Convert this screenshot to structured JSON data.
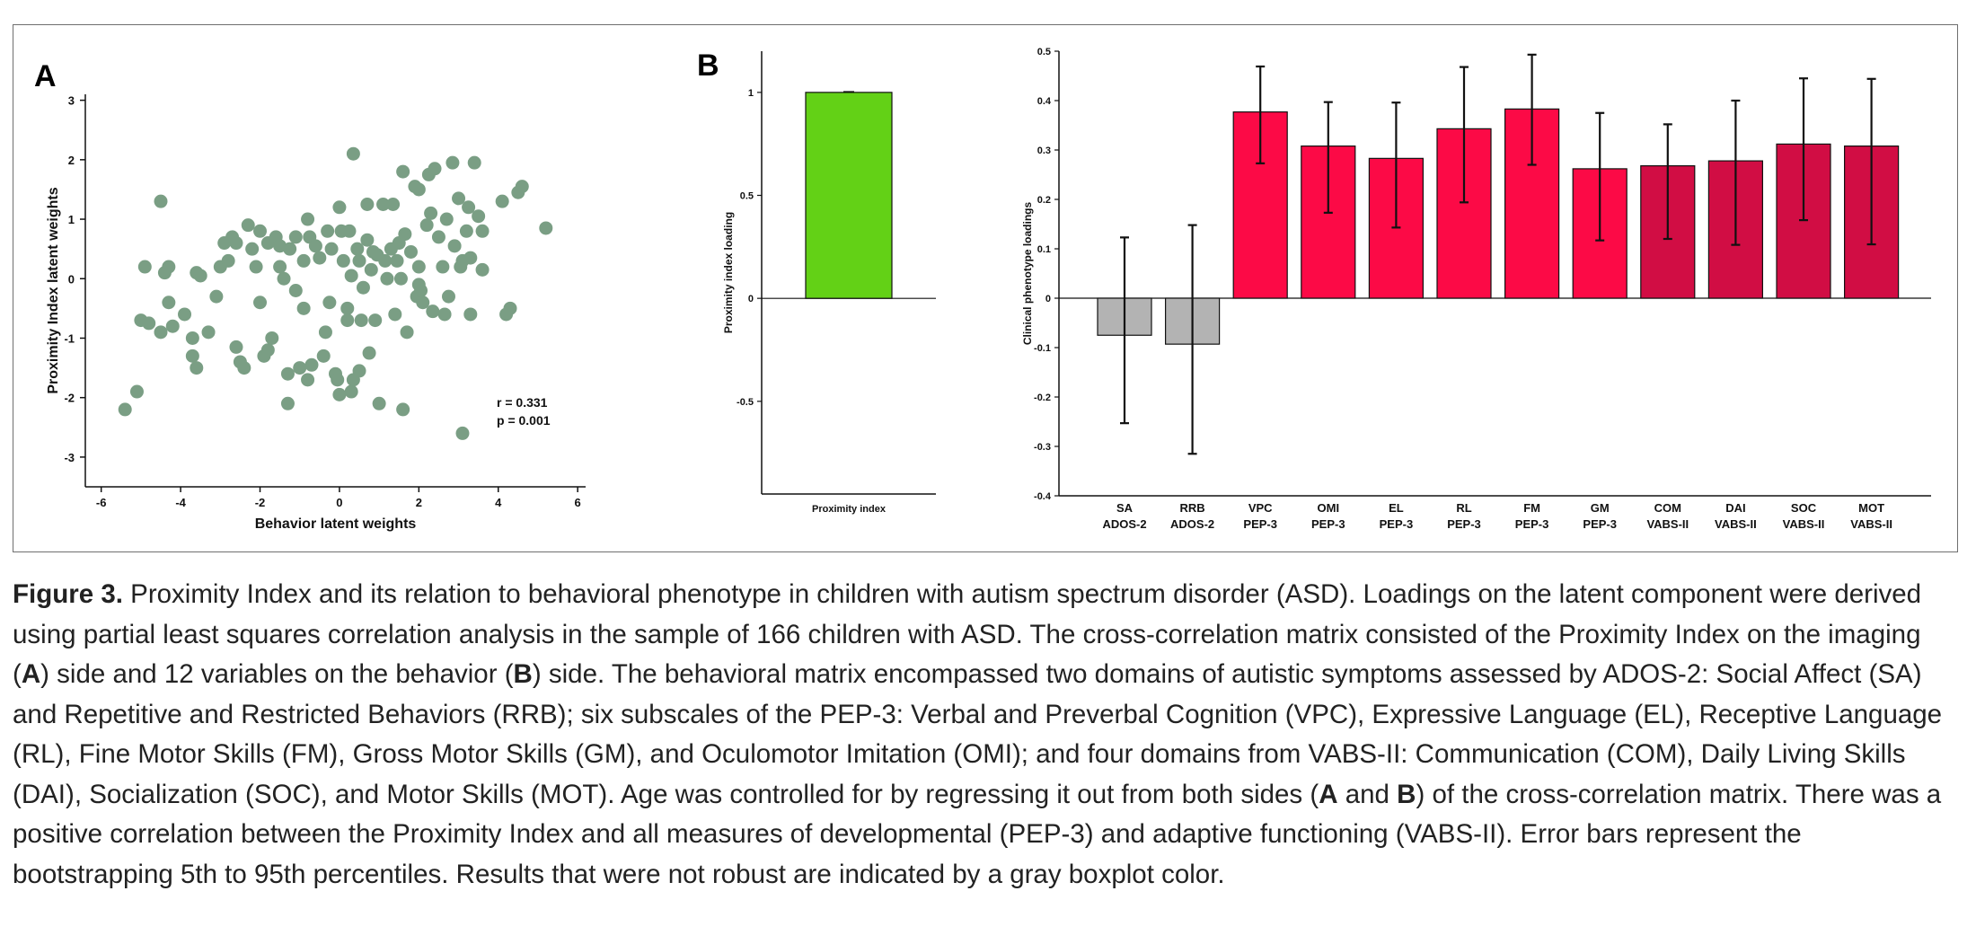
{
  "panel_a_label": "A",
  "panel_b_label": "B",
  "chart_data": [
    {
      "type": "scatter",
      "xlabel": "Behavior latent weights",
      "ylabel": "Proximity Index latent weights",
      "xlim": [
        -6.4,
        6.2
      ],
      "ylim": [
        -3.5,
        3.1
      ],
      "xticks": [
        -6,
        -4,
        -2,
        0,
        2,
        4,
        6
      ],
      "yticks": [
        -3,
        -2,
        -1,
        0,
        1,
        2,
        3
      ],
      "color": "#7a9e84",
      "annotations": [
        "r  = 0.331",
        "p = 0.001"
      ],
      "points": [
        [
          -5.4,
          -2.2
        ],
        [
          -5.1,
          -1.9
        ],
        [
          -4.9,
          0.2
        ],
        [
          -5.0,
          -0.7
        ],
        [
          -4.8,
          -0.75
        ],
        [
          -4.5,
          1.3
        ],
        [
          -4.4,
          0.1
        ],
        [
          -4.3,
          0.2
        ],
        [
          -4.5,
          -0.9
        ],
        [
          -4.2,
          -0.8
        ],
        [
          -4.3,
          -0.4
        ],
        [
          -3.9,
          -0.6
        ],
        [
          -3.7,
          -1.0
        ],
        [
          -3.6,
          0.1
        ],
        [
          -3.5,
          0.05
        ],
        [
          -3.7,
          -1.3
        ],
        [
          -3.6,
          -1.5
        ],
        [
          -3.1,
          -0.3
        ],
        [
          -3.0,
          0.2
        ],
        [
          -2.9,
          0.6
        ],
        [
          -2.7,
          0.7
        ],
        [
          -2.8,
          0.3
        ],
        [
          -2.6,
          -1.15
        ],
        [
          -2.5,
          -1.4
        ],
        [
          -2.4,
          -1.5
        ],
        [
          -2.6,
          0.6
        ],
        [
          -2.3,
          0.9
        ],
        [
          -2.2,
          0.5
        ],
        [
          -2.1,
          0.2
        ],
        [
          -2.0,
          -0.4
        ],
        [
          -2.0,
          0.8
        ],
        [
          -1.9,
          -1.3
        ],
        [
          -1.8,
          -1.2
        ],
        [
          -1.8,
          0.6
        ],
        [
          -1.7,
          -1.0
        ],
        [
          -1.6,
          0.7
        ],
        [
          -1.5,
          0.2
        ],
        [
          -1.4,
          0.0
        ],
        [
          -1.3,
          -1.6
        ],
        [
          -1.3,
          -2.1
        ],
        [
          -1.25,
          0.5
        ],
        [
          -1.1,
          0.7
        ],
        [
          -1.1,
          -0.2
        ],
        [
          -1.0,
          -1.5
        ],
        [
          -0.9,
          0.3
        ],
        [
          -0.9,
          -0.5
        ],
        [
          -0.8,
          1.0
        ],
        [
          -0.8,
          -1.7
        ],
        [
          -0.75,
          0.7
        ],
        [
          -0.7,
          -1.45
        ],
        [
          -0.6,
          0.55
        ],
        [
          -0.5,
          0.35
        ],
        [
          -0.4,
          -1.3
        ],
        [
          -0.35,
          -0.9
        ],
        [
          -0.3,
          0.8
        ],
        [
          -0.25,
          -0.4
        ],
        [
          -0.2,
          0.5
        ],
        [
          -0.1,
          -1.6
        ],
        [
          -0.05,
          -1.7
        ],
        [
          0.0,
          1.2
        ],
        [
          0.0,
          -1.95
        ],
        [
          0.05,
          0.8
        ],
        [
          0.1,
          0.3
        ],
        [
          0.2,
          -0.5
        ],
        [
          0.2,
          -0.7
        ],
        [
          0.25,
          0.8
        ],
        [
          0.3,
          0.05
        ],
        [
          0.3,
          -1.9
        ],
        [
          0.35,
          -1.7
        ],
        [
          0.35,
          2.1
        ],
        [
          0.45,
          0.5
        ],
        [
          0.5,
          0.3
        ],
        [
          0.55,
          -0.7
        ],
        [
          0.6,
          -0.15
        ],
        [
          0.7,
          1.25
        ],
        [
          0.7,
          0.65
        ],
        [
          0.75,
          -1.25
        ],
        [
          0.8,
          0.15
        ],
        [
          0.85,
          0.45
        ],
        [
          0.9,
          -0.7
        ],
        [
          0.95,
          0.4
        ],
        [
          1.0,
          -2.1
        ],
        [
          1.1,
          1.25
        ],
        [
          1.15,
          0.3
        ],
        [
          1.2,
          0.0
        ],
        [
          1.3,
          0.5
        ],
        [
          1.35,
          1.25
        ],
        [
          1.4,
          -0.6
        ],
        [
          1.45,
          0.3
        ],
        [
          1.5,
          0.6
        ],
        [
          1.55,
          0.0
        ],
        [
          1.6,
          1.8
        ],
        [
          1.6,
          -2.2
        ],
        [
          1.65,
          0.75
        ],
        [
          1.7,
          -0.9
        ],
        [
          1.8,
          0.45
        ],
        [
          1.9,
          1.55
        ],
        [
          1.95,
          -0.3
        ],
        [
          2.0,
          0.2
        ],
        [
          2.0,
          1.5
        ],
        [
          2.05,
          -0.2
        ],
        [
          2.1,
          -0.4
        ],
        [
          2.2,
          0.9
        ],
        [
          2.25,
          1.75
        ],
        [
          2.3,
          1.1
        ],
        [
          2.35,
          -0.55
        ],
        [
          2.4,
          1.85
        ],
        [
          2.5,
          0.7
        ],
        [
          2.6,
          0.2
        ],
        [
          2.65,
          -0.6
        ],
        [
          2.7,
          1.0
        ],
        [
          2.75,
          -0.3
        ],
        [
          2.85,
          1.95
        ],
        [
          2.9,
          0.55
        ],
        [
          3.0,
          1.35
        ],
        [
          3.05,
          0.2
        ],
        [
          3.1,
          0.3
        ],
        [
          3.1,
          -2.6
        ],
        [
          3.2,
          0.8
        ],
        [
          3.25,
          1.2
        ],
        [
          3.3,
          -0.6
        ],
        [
          3.3,
          0.35
        ],
        [
          3.4,
          1.95
        ],
        [
          3.5,
          1.05
        ],
        [
          3.6,
          0.15
        ],
        [
          3.6,
          0.8
        ],
        [
          4.2,
          -0.6
        ],
        [
          4.3,
          -0.5
        ],
        [
          4.1,
          1.3
        ],
        [
          4.5,
          1.45
        ],
        [
          4.6,
          1.55
        ],
        [
          5.2,
          0.85
        ],
        [
          -3.3,
          -0.9
        ],
        [
          -1.5,
          0.55
        ],
        [
          0.5,
          -1.55
        ],
        [
          2.0,
          -0.1
        ]
      ]
    },
    {
      "type": "bar",
      "ylabel": "Proximity index loading",
      "categories": [
        "Proximity index"
      ],
      "values": [
        1.0
      ],
      "errors": [
        [
          0.998,
          1.002
        ]
      ],
      "ylim": [
        -0.95,
        1.2
      ],
      "yticks": [
        -0.5,
        0,
        0.5,
        1
      ],
      "ytick_labels": [
        "-0.5",
        "0",
        "0.5",
        "1"
      ],
      "color": "#63d116"
    },
    {
      "type": "bar",
      "ylabel": "Clinical phenotype loadings",
      "ylim": [
        -0.4,
        0.5
      ],
      "yticks": [
        -0.4,
        -0.3,
        -0.2,
        -0.1,
        0,
        0.1,
        0.2,
        0.3,
        0.4,
        0.5
      ],
      "ytick_labels": [
        "-0.4",
        "-0.3",
        "-0.2",
        "-0.1",
        "0",
        "0.1",
        "0.2",
        "0.3",
        "0.4",
        "0.5"
      ],
      "categories": [
        [
          "SA",
          "ADOS-2"
        ],
        [
          "RRB",
          "ADOS-2"
        ],
        [
          "VPC",
          "PEP-3"
        ],
        [
          "OMI",
          "PEP-3"
        ],
        [
          "EL",
          "PEP-3"
        ],
        [
          "RL",
          "PEP-3"
        ],
        [
          "FM",
          "PEP-3"
        ],
        [
          "GM",
          "PEP-3"
        ],
        [
          "COM",
          "VABS-II"
        ],
        [
          "DAI",
          "VABS-II"
        ],
        [
          "SOC",
          "VABS-II"
        ],
        [
          "MOT",
          "VABS-II"
        ]
      ],
      "values": [
        -0.075,
        -0.093,
        0.377,
        0.308,
        0.283,
        0.343,
        0.383,
        0.262,
        0.268,
        0.278,
        0.312,
        0.308
      ],
      "errors": [
        [
          -0.253,
          0.123
        ],
        [
          -0.315,
          0.148
        ],
        [
          0.273,
          0.469
        ],
        [
          0.173,
          0.397
        ],
        [
          0.143,
          0.396
        ],
        [
          0.194,
          0.468
        ],
        [
          0.27,
          0.493
        ],
        [
          0.117,
          0.375
        ],
        [
          0.12,
          0.352
        ],
        [
          0.108,
          0.4
        ],
        [
          0.158,
          0.445
        ],
        [
          0.109,
          0.444
        ]
      ],
      "colors": [
        "#b3b3b3",
        "#b3b3b3",
        "#fc0a46",
        "#fc0a46",
        "#fc0a46",
        "#fc0a46",
        "#fc0a46",
        "#fc0a46",
        "#d10d44",
        "#d10d44",
        "#d10d44",
        "#d10d44"
      ]
    }
  ],
  "caption": {
    "figure_label": "Figure 3.",
    "p1": " Proximity Index and its relation to behavioral phenotype in children with autism spectrum disorder (ASD). Loadings on the latent component were derived using partial least squares correlation analysis in the sample of 166 children with ASD. The cross-correlation matrix consisted of the Proximity Index on the imaging (",
    "a1": "A",
    "p2": ") side and 12 variables on the behavior (",
    "b1": "B",
    "p3": ") side. The behavioral matrix encompassed two domains of autistic symptoms assessed by ADOS-2: Social Affect (SA) and Repetitive and Restricted Behaviors (RRB); six subscales of the PEP-3: Verbal and Preverbal Cognition (VPC), Expressive Language (EL), Receptive Language (RL), Fine Motor Skills (FM), Gross Motor Skills (GM), and Oculomotor Imitation (OMI); and four domains from VABS-II: Communication (COM), Daily Living Skills (DAI), Socialization (SOC), and Motor Skills (MOT). Age was controlled for by regressing it out from both sides (",
    "a2": "A",
    "p4": " and ",
    "b2": "B",
    "p5": ") of the cross-correlation matrix. There was a positive correlation between the Proximity Index and all measures of developmental (PEP-3) and adaptive functioning (VABS-II). Error bars represent the bootstrapping 5th to 95th percentiles. Results that were not robust are indicated by a gray boxplot color."
  }
}
